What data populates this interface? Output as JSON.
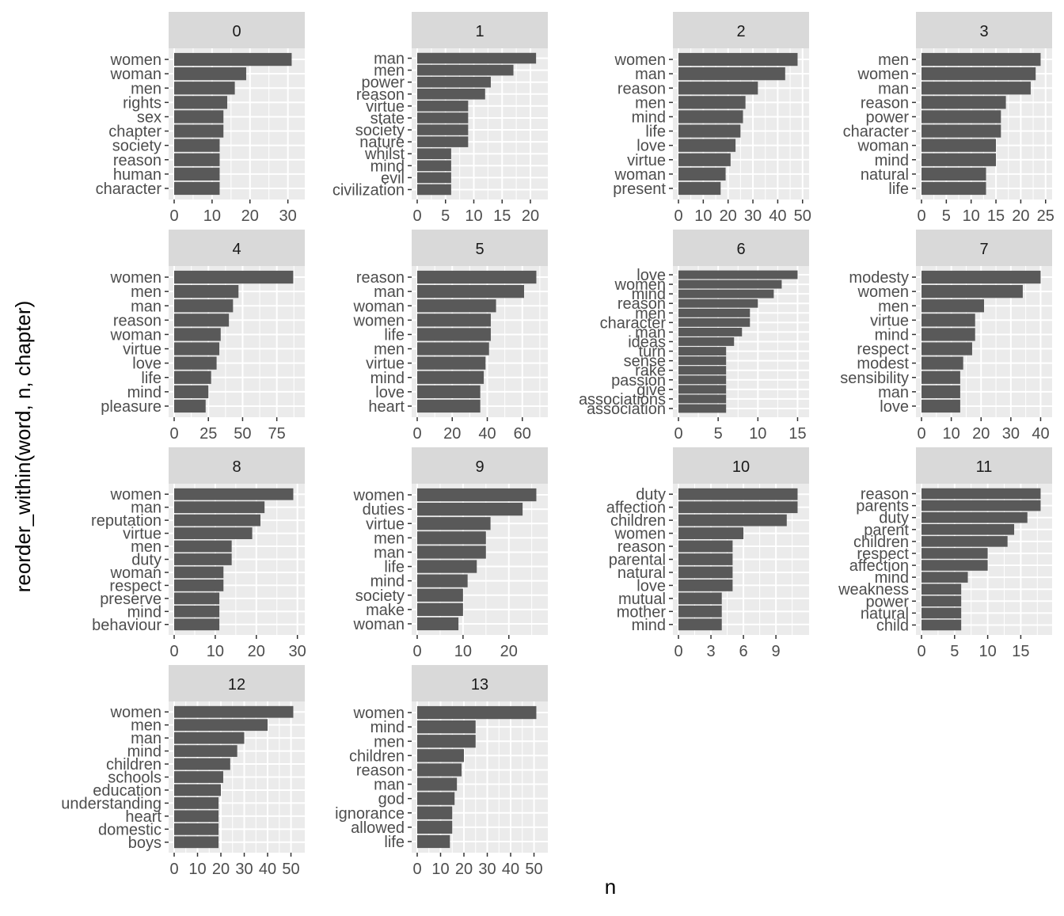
{
  "chart_data": {
    "type": "bar",
    "orientation": "horizontal",
    "facet_by": "chapter",
    "xlabel": "n",
    "ylabel": "reorder_within(word, n, chapter)",
    "grid": true,
    "bar_color": "#595959",
    "panel_background": "#EBEBEB",
    "strip_background": "#D9D9D9",
    "facets": [
      {
        "label": "0",
        "xlim": [
          0,
          33
        ],
        "ticks": [
          0,
          10,
          20,
          30
        ],
        "categories": [
          "women",
          "woman",
          "men",
          "rights",
          "sex",
          "chapter",
          "society",
          "reason",
          "human",
          "character"
        ],
        "values": [
          31,
          19,
          16,
          14,
          13,
          13,
          12,
          12,
          12,
          12
        ]
      },
      {
        "label": "1",
        "xlim": [
          0,
          22.1
        ],
        "ticks": [
          0,
          5,
          10,
          15,
          20
        ],
        "categories": [
          "man",
          "men",
          "power",
          "reason",
          "virtue",
          "state",
          "society",
          "nature",
          "whilst",
          "mind",
          "evil",
          "civilization"
        ],
        "values": [
          21,
          17,
          13,
          12,
          9,
          9,
          9,
          9,
          6,
          6,
          6,
          6
        ]
      },
      {
        "label": "2",
        "xlim": [
          0,
          50.4
        ],
        "ticks": [
          0,
          10,
          20,
          30,
          40,
          50
        ],
        "categories": [
          "women",
          "man",
          "reason",
          "men",
          "mind",
          "life",
          "love",
          "virtue",
          "woman",
          "present"
        ],
        "values": [
          48,
          43,
          32,
          27,
          26,
          25,
          23,
          21,
          19,
          17
        ]
      },
      {
        "label": "3",
        "xlim": [
          0,
          25.2
        ],
        "ticks": [
          0,
          5,
          10,
          15,
          20,
          25
        ],
        "categories": [
          "men",
          "women",
          "man",
          "reason",
          "power",
          "character",
          "woman",
          "mind",
          "natural",
          "life"
        ],
        "values": [
          24,
          23,
          22,
          17,
          16,
          16,
          15,
          15,
          13,
          13
        ]
      },
      {
        "label": "4",
        "xlim": [
          0,
          91.4
        ],
        "ticks": [
          0,
          25,
          50,
          75
        ],
        "categories": [
          "women",
          "men",
          "man",
          "reason",
          "woman",
          "virtue",
          "love",
          "life",
          "mind",
          "pleasure"
        ],
        "values": [
          87,
          47,
          43,
          40,
          34,
          33,
          31,
          27,
          25,
          23
        ]
      },
      {
        "label": "5",
        "xlim": [
          0,
          71.4
        ],
        "ticks": [
          0,
          20,
          40,
          60
        ],
        "categories": [
          "reason",
          "man",
          "woman",
          "women",
          "life",
          "men",
          "virtue",
          "mind",
          "love",
          "heart"
        ],
        "values": [
          68,
          61,
          45,
          42,
          42,
          41,
          39,
          38,
          36,
          36
        ]
      },
      {
        "label": "6",
        "xlim": [
          0,
          15.75
        ],
        "ticks": [
          0,
          5,
          10,
          15
        ],
        "categories": [
          "love",
          "women",
          "mind",
          "reason",
          "men",
          "character",
          "man",
          "ideas",
          "turn",
          "sense",
          "rake",
          "passion",
          "give",
          "associations",
          "association"
        ],
        "values": [
          15,
          13,
          12,
          10,
          9,
          9,
          8,
          7,
          6,
          6,
          6,
          6,
          6,
          6,
          6
        ]
      },
      {
        "label": "7",
        "xlim": [
          0,
          42
        ],
        "ticks": [
          0,
          10,
          20,
          30,
          40
        ],
        "categories": [
          "modesty",
          "women",
          "men",
          "virtue",
          "mind",
          "respect",
          "modest",
          "sensibility",
          "man",
          "love"
        ],
        "values": [
          40,
          34,
          21,
          18,
          18,
          17,
          14,
          13,
          13,
          13
        ]
      },
      {
        "label": "8",
        "xlim": [
          0,
          30.45
        ],
        "ticks": [
          0,
          10,
          20,
          30
        ],
        "categories": [
          "women",
          "man",
          "reputation",
          "virtue",
          "men",
          "duty",
          "woman",
          "respect",
          "preserve",
          "mind",
          "behaviour"
        ],
        "values": [
          29,
          22,
          21,
          19,
          14,
          14,
          12,
          12,
          11,
          11,
          11
        ]
      },
      {
        "label": "9",
        "xlim": [
          0,
          27.3
        ],
        "ticks": [
          0,
          10,
          20
        ],
        "categories": [
          "women",
          "duties",
          "virtue",
          "men",
          "man",
          "life",
          "mind",
          "society",
          "make",
          "woman"
        ],
        "values": [
          26,
          23,
          16,
          15,
          15,
          13,
          11,
          10,
          10,
          9
        ]
      },
      {
        "label": "10",
        "xlim": [
          0,
          11.55
        ],
        "ticks": [
          0,
          3,
          6,
          9
        ],
        "categories": [
          "duty",
          "affection",
          "children",
          "women",
          "reason",
          "parental",
          "natural",
          "love",
          "mutual",
          "mother",
          "mind"
        ],
        "values": [
          11,
          11,
          10,
          6,
          5,
          5,
          5,
          5,
          4,
          4,
          4
        ]
      },
      {
        "label": "11",
        "xlim": [
          0,
          18.9
        ],
        "ticks": [
          0,
          5,
          10,
          15
        ],
        "categories": [
          "reason",
          "parents",
          "duty",
          "parent",
          "children",
          "respect",
          "affection",
          "mind",
          "weakness",
          "power",
          "natural",
          "child"
        ],
        "values": [
          18,
          18,
          16,
          14,
          13,
          10,
          10,
          7,
          6,
          6,
          6,
          6
        ]
      },
      {
        "label": "12",
        "xlim": [
          0,
          53.55
        ],
        "ticks": [
          0,
          10,
          20,
          30,
          40,
          50
        ],
        "categories": [
          "women",
          "men",
          "man",
          "mind",
          "children",
          "schools",
          "education",
          "understanding",
          "heart",
          "domestic",
          "boys"
        ],
        "values": [
          51,
          40,
          30,
          27,
          24,
          21,
          20,
          19,
          19,
          19,
          19
        ]
      },
      {
        "label": "13",
        "xlim": [
          0,
          53.55
        ],
        "ticks": [
          0,
          10,
          20,
          30,
          40,
          50
        ],
        "categories": [
          "women",
          "mind",
          "men",
          "children",
          "reason",
          "man",
          "god",
          "ignorance",
          "allowed",
          "life"
        ],
        "values": [
          51,
          25,
          25,
          20,
          19,
          17,
          16,
          15,
          15,
          14
        ]
      }
    ]
  }
}
